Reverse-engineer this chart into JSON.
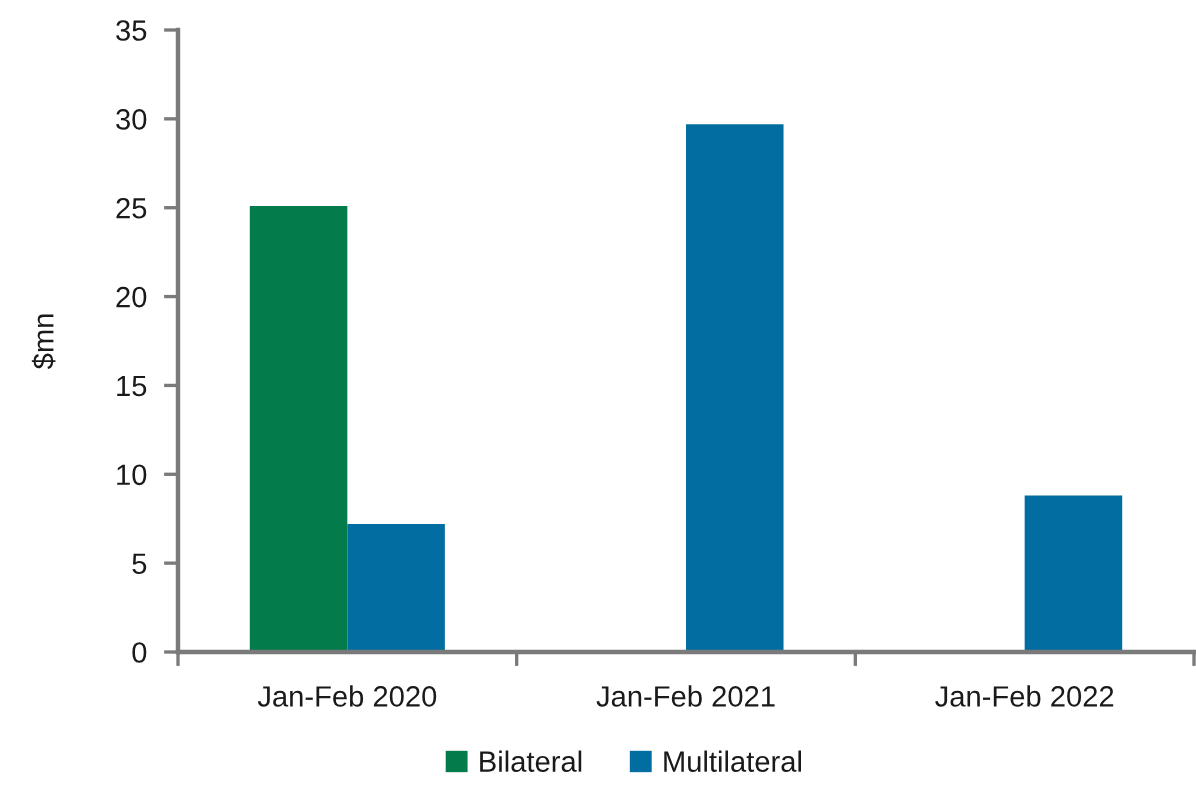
{
  "chart_data": {
    "type": "bar",
    "ylabel": "$mn",
    "categories": [
      "Jan-Feb 2020",
      "Jan-Feb 2021",
      "Jan-Feb 2022"
    ],
    "series": [
      {
        "name": "Bilateral",
        "color": "#047b4a",
        "values": [
          25.1,
          null,
          null
        ]
      },
      {
        "name": "Multilateral",
        "color": "#026da0",
        "values": [
          7.2,
          29.7,
          8.8
        ]
      }
    ],
    "ylim": [
      0,
      35
    ],
    "yticks": [
      0,
      5,
      10,
      15,
      20,
      25,
      30,
      35
    ],
    "legend": "bottom"
  }
}
